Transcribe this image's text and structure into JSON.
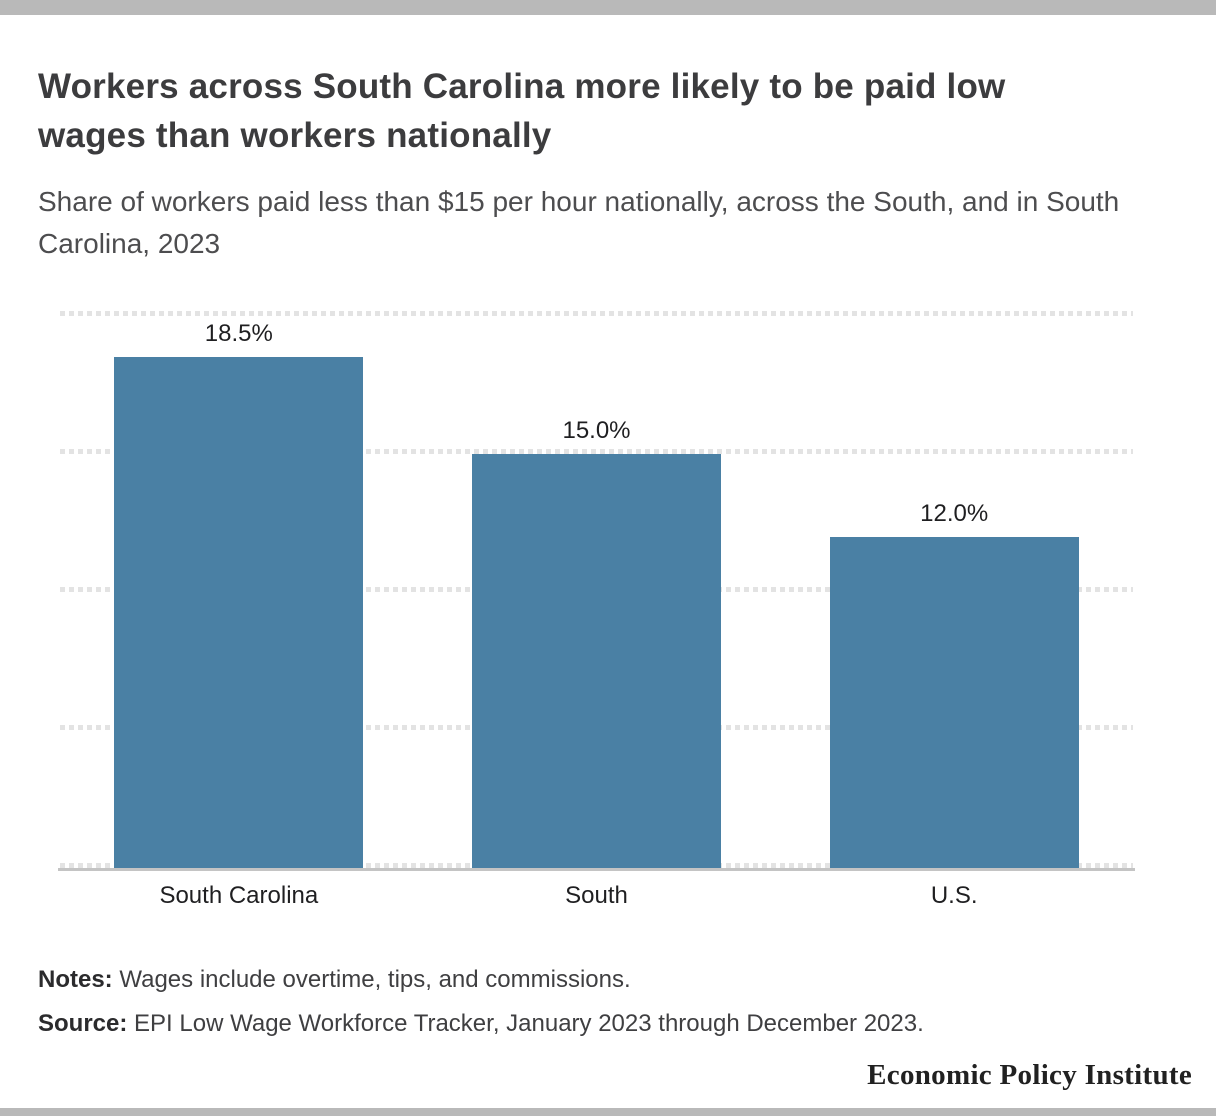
{
  "accent": {
    "bar_color": "#b9b9b9"
  },
  "header": {
    "title": "Workers across South Carolina more likely to be paid low wages than workers nationally",
    "subtitle": "Share of workers paid less than $15 per hour nationally, across the South, and in South Carolina, 2023"
  },
  "chart_data": {
    "type": "bar",
    "title": "Workers across South Carolina more likely to be paid low wages than workers nationally",
    "subtitle": "Share of workers paid less than $15 per hour nationally, across the South, and in South Carolina, 2023",
    "categories": [
      "South Carolina",
      "South",
      "U.S."
    ],
    "values": [
      18.5,
      15.0,
      12.0
    ],
    "value_labels": [
      "18.5%",
      "15.0%",
      "12.0%"
    ],
    "xlabel": "",
    "ylabel": "",
    "ylim": [
      0,
      20
    ],
    "gridlines": [
      0,
      5,
      10,
      15,
      20
    ],
    "grid_style": "dotted",
    "legend_position": "none",
    "bar_color": "#4a80a4"
  },
  "notes": {
    "label": "Notes:",
    "text": "Wages include overtime, tips, and commissions."
  },
  "source": {
    "label": "Source:",
    "text": "EPI Low Wage Workforce Tracker, January 2023 through December 2023."
  },
  "branding": {
    "name": "Economic Policy Institute"
  }
}
